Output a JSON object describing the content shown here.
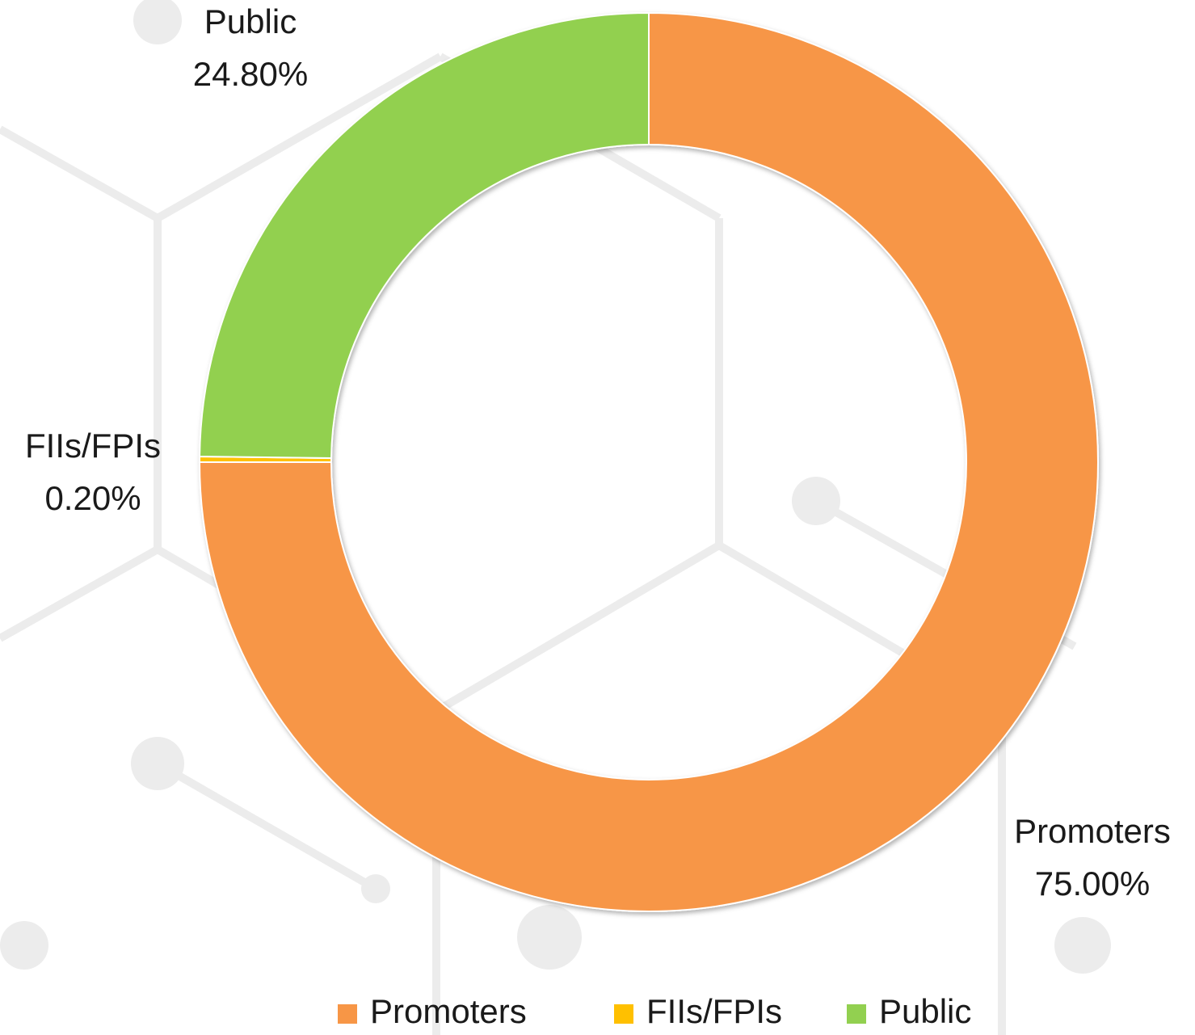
{
  "chart_data": {
    "type": "donut",
    "categories": [
      "Promoters",
      "FIIs/FPIs",
      "Public"
    ],
    "values": [
      75,
      0.2,
      24.8
    ],
    "value_labels": [
      "75.00%",
      "0.20%",
      "24.80%"
    ],
    "colors": [
      "#f79646",
      "#ffc000",
      "#92d050"
    ],
    "legend": "bottom"
  }
}
